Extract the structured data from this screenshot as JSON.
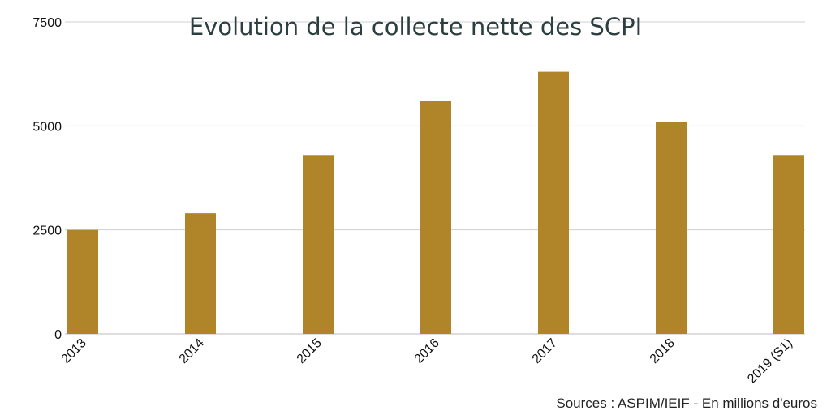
{
  "chart_data": {
    "type": "bar",
    "title": "Evolution de la collecte nette des SCPI",
    "categories": [
      "2013",
      "2014",
      "2015",
      "2016",
      "2017",
      "2018",
      "2019 (S1)"
    ],
    "values": [
      2500,
      2900,
      4300,
      5600,
      6300,
      5100,
      4300
    ],
    "yticks": [
      0,
      2500,
      5000,
      7500
    ],
    "ytick_labels": [
      "0",
      "2500",
      "5000",
      "7500"
    ],
    "ylim": [
      0,
      7500
    ],
    "xlabel": "",
    "ylabel": "",
    "grid": true,
    "bar_color": "#b08529",
    "source_note": "Sources : ASPIM/IEIF - En millions d'euros"
  }
}
